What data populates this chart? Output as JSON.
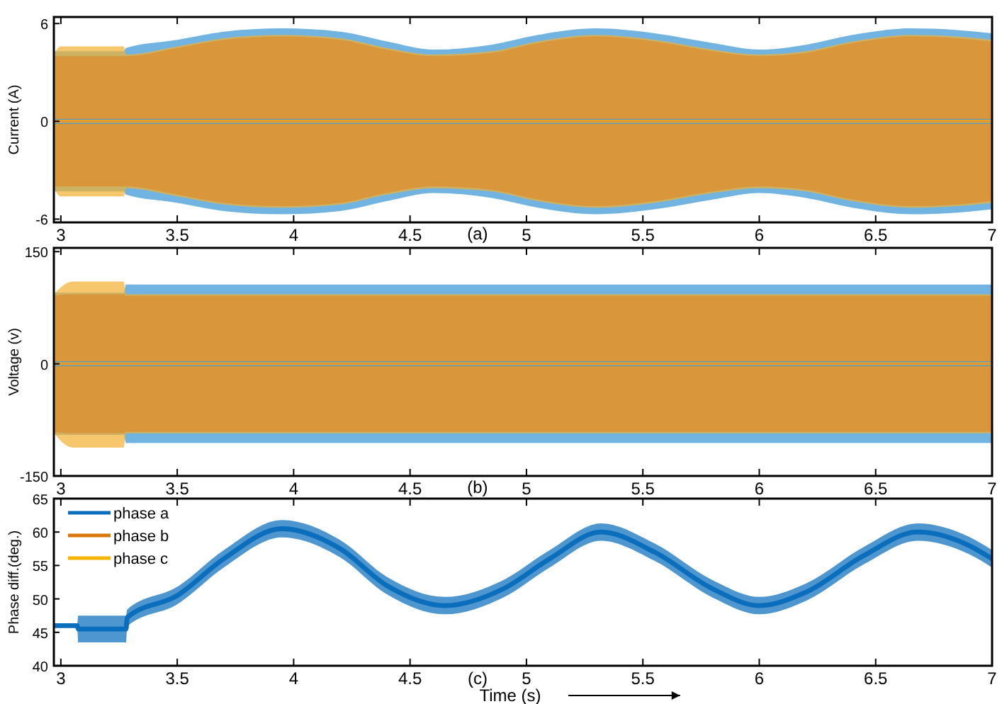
{
  "chart_data": [
    {
      "type": "line",
      "ylabel": "Current (A)",
      "annotations": [
        "(a)"
      ],
      "xlim": [
        2.97,
        7
      ],
      "xticks": [
        3,
        3.5,
        4,
        4.5,
        5,
        5.5,
        6,
        6.5,
        7
      ],
      "ylim": [
        -6.2,
        6.4
      ],
      "yticks": [
        -6,
        0,
        6
      ],
      "grid": false,
      "legend": false,
      "x": [
        2.97,
        3.0,
        3.27,
        3.28,
        3.5,
        3.7,
        3.95,
        4.2,
        4.4,
        4.6,
        4.85,
        5.05,
        5.3,
        5.55,
        5.8,
        6.0,
        6.2,
        6.4,
        6.65,
        6.85,
        7.0
      ],
      "series": [
        {
          "color": "#3a96d6",
          "values": [
            0,
            0,
            0,
            0,
            0,
            0,
            0,
            0,
            0,
            0,
            0,
            0,
            0,
            0,
            0,
            0,
            0,
            0,
            0,
            0,
            0
          ],
          "upper": [
            4.3,
            4.3,
            4.3,
            4.5,
            5.0,
            5.5,
            5.7,
            5.5,
            4.9,
            4.4,
            4.7,
            5.3,
            5.7,
            5.4,
            4.8,
            4.4,
            4.7,
            5.3,
            5.7,
            5.6,
            5.4
          ],
          "lower": [
            -4.3,
            -4.3,
            -4.3,
            -4.5,
            -5.0,
            -5.5,
            -5.7,
            -5.5,
            -4.9,
            -4.4,
            -4.7,
            -5.3,
            -5.7,
            -5.4,
            -4.8,
            -4.4,
            -4.7,
            -5.3,
            -5.7,
            -5.6,
            -5.4
          ]
        },
        {
          "color": "#f2b233",
          "values": [
            0,
            0,
            0,
            0,
            0,
            0,
            0,
            0,
            0,
            0,
            0,
            0,
            0,
            0,
            0,
            0,
            0,
            0,
            0,
            0,
            0
          ],
          "upper": [
            4.1,
            4.6,
            4.6,
            4.1,
            4.6,
            5.1,
            5.3,
            5.1,
            4.5,
            4.1,
            4.3,
            4.9,
            5.3,
            5.0,
            4.4,
            4.1,
            4.3,
            4.9,
            5.3,
            5.2,
            5.0
          ],
          "lower": [
            -4.1,
            -4.6,
            -4.6,
            -4.1,
            -4.6,
            -5.1,
            -5.3,
            -5.1,
            -4.5,
            -4.1,
            -4.3,
            -4.9,
            -5.3,
            -5.0,
            -4.4,
            -4.1,
            -4.3,
            -4.9,
            -5.3,
            -5.2,
            -5.0
          ]
        },
        {
          "color": "#de8a2a",
          "values": [
            0,
            0,
            0,
            0,
            0,
            0,
            0,
            0,
            0,
            0,
            0,
            0,
            0,
            0,
            0,
            0,
            0,
            0,
            0,
            0,
            0
          ],
          "upper": [
            4.0,
            4.0,
            4.0,
            4.0,
            4.5,
            5.0,
            5.2,
            5.0,
            4.4,
            4.0,
            4.2,
            4.8,
            5.2,
            4.9,
            4.3,
            4.0,
            4.2,
            4.8,
            5.2,
            5.1,
            4.9
          ],
          "lower": [
            -4.0,
            -4.0,
            -4.0,
            -4.0,
            -4.5,
            -5.0,
            -5.2,
            -5.0,
            -4.4,
            -4.0,
            -4.2,
            -4.8,
            -5.2,
            -4.9,
            -4.3,
            -4.0,
            -4.2,
            -4.8,
            -5.2,
            -5.1,
            -4.9
          ]
        }
      ]
    },
    {
      "type": "line",
      "ylabel": "Voltage (v)",
      "annotations": [
        "(b)"
      ],
      "xlim": [
        2.97,
        7
      ],
      "xticks": [
        3,
        3.5,
        4,
        4.5,
        5,
        5.5,
        6,
        6.5,
        7
      ],
      "ylim": [
        -150,
        155
      ],
      "yticks": [
        -150,
        0,
        150
      ],
      "grid": false,
      "legend": false,
      "x": [
        2.97,
        3.05,
        3.27,
        3.28,
        7.0
      ],
      "series": [
        {
          "color": "#3a96d6",
          "values": [
            0,
            0,
            0,
            0,
            0
          ],
          "upper": [
            95,
            95,
            95,
            106,
            106
          ],
          "lower": [
            -95,
            -95,
            -95,
            -106,
            -106
          ]
        },
        {
          "color": "#f2b233",
          "values": [
            0,
            0,
            0,
            0,
            0
          ],
          "upper": [
            93,
            110,
            110,
            93,
            93
          ],
          "lower": [
            -93,
            -112,
            -112,
            -93,
            -93
          ]
        },
        {
          "color": "#de8a2a",
          "values": [
            0,
            0,
            0,
            0,
            0
          ],
          "upper": [
            91,
            93,
            93,
            91,
            91
          ],
          "lower": [
            -91,
            -93,
            -93,
            -91,
            -91
          ]
        }
      ]
    },
    {
      "type": "line",
      "ylabel": "Phase diff.(deg.)",
      "xlabel": "Time (s)",
      "annotations": [
        "(c)"
      ],
      "xlim": [
        2.97,
        7
      ],
      "xticks": [
        3,
        3.5,
        4,
        4.5,
        5,
        5.5,
        6,
        6.5,
        7
      ],
      "ylim": [
        40,
        65
      ],
      "yticks": [
        40,
        45,
        50,
        55,
        60,
        65
      ],
      "grid": false,
      "legend": "top left",
      "x": [
        2.97,
        3.07,
        3.075,
        3.28,
        3.285,
        3.5,
        3.7,
        3.95,
        4.2,
        4.4,
        4.65,
        4.9,
        5.1,
        5.32,
        5.55,
        5.8,
        6.0,
        6.2,
        6.45,
        6.68,
        6.9,
        7.0
      ],
      "series": [
        {
          "name": "phase a",
          "color": "#0a6ebd",
          "values": [
            46,
            46,
            45.5,
            45.5,
            47.2,
            50.5,
            56,
            60.5,
            57.5,
            52,
            49,
            51.5,
            56,
            60,
            57,
            51.5,
            49,
            51,
            56.5,
            60,
            58,
            56
          ],
          "upper": [
            46.1,
            46.1,
            47.5,
            47.5,
            48.4,
            51.8,
            57.3,
            61.8,
            58.8,
            53.3,
            50.3,
            52.8,
            57.3,
            61.3,
            58.3,
            52.8,
            50.3,
            52.3,
            57.8,
            61.3,
            59.3,
            57.3
          ],
          "lower": [
            45.9,
            45.9,
            43.5,
            43.5,
            45.9,
            49.2,
            54.7,
            59.2,
            56.2,
            50.7,
            47.7,
            50.2,
            54.7,
            58.7,
            55.7,
            50.2,
            47.7,
            49.7,
            55.2,
            58.7,
            56.7,
            54.7
          ]
        },
        {
          "name": "phase b",
          "color": "#d9770d",
          "values": [
            null,
            null,
            null,
            null,
            null,
            null,
            null,
            null,
            null,
            null,
            null,
            null,
            null,
            null,
            null,
            null,
            null,
            null,
            null,
            null,
            null,
            null
          ]
        },
        {
          "name": "phase c",
          "color": "#f5b400",
          "values": [
            null,
            null,
            null,
            null,
            null,
            null,
            null,
            null,
            null,
            null,
            null,
            null,
            null,
            null,
            null,
            null,
            null,
            null,
            null,
            null,
            null,
            null
          ]
        }
      ]
    }
  ]
}
